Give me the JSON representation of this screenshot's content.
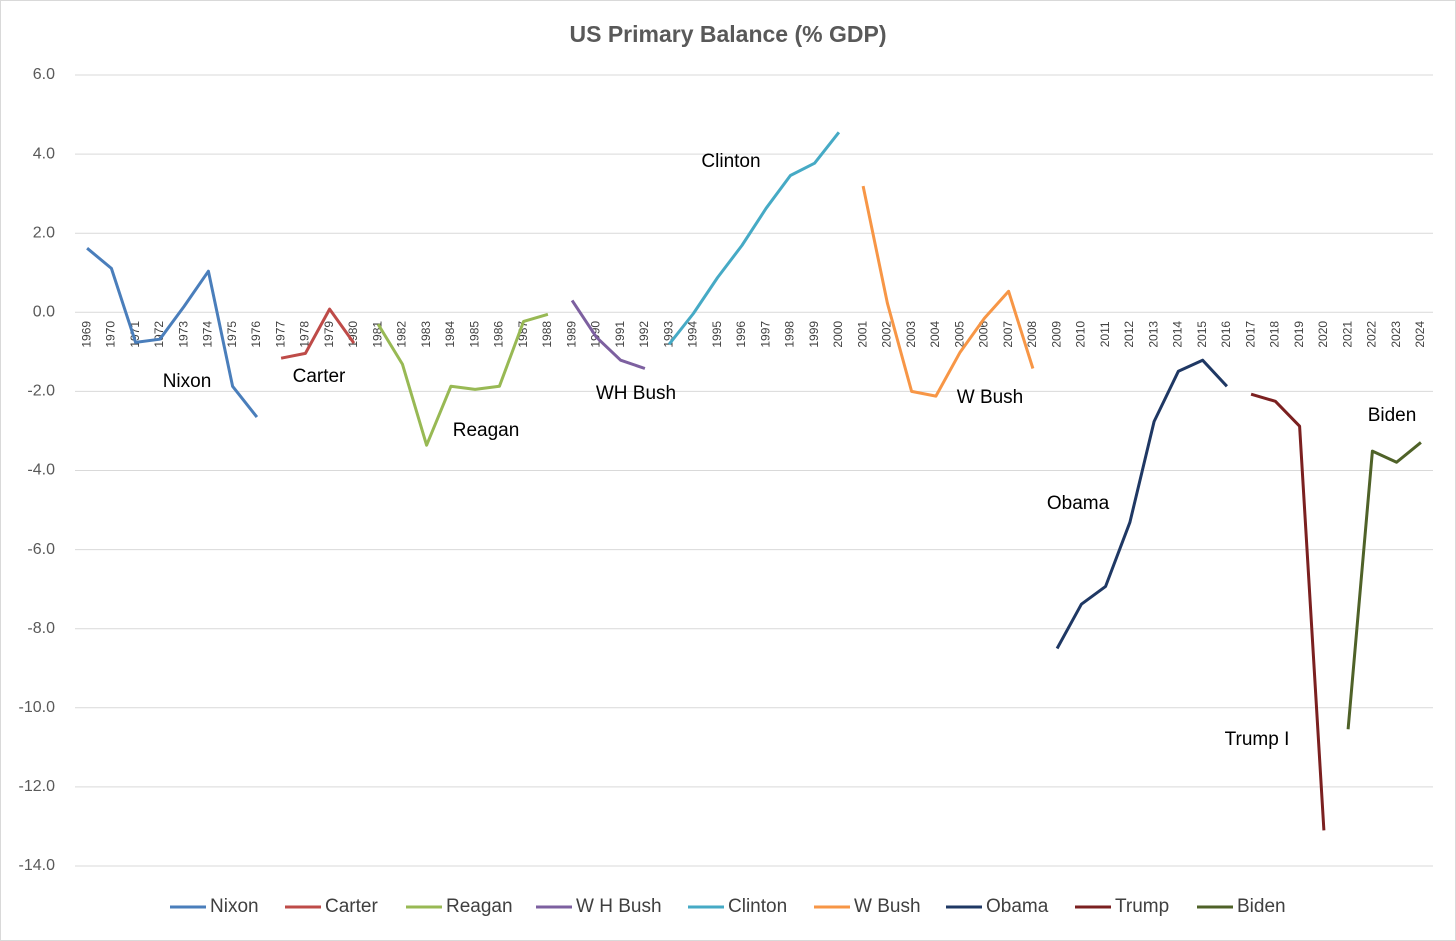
{
  "chart_data": {
    "type": "line",
    "title": "US Primary Balance (% GDP)",
    "categories": [
      "1969",
      "1970",
      "1971",
      "1972",
      "1973",
      "1974",
      "1975",
      "1976",
      "1977",
      "1978",
      "1979",
      "1980",
      "1981",
      "1982",
      "1983",
      "1984",
      "1985",
      "1986",
      "1987",
      "1988",
      "1989",
      "1990",
      "1991",
      "1992",
      "1993",
      "1994",
      "1995",
      "1996",
      "1997",
      "1998",
      "1999",
      "2000",
      "2001",
      "2002",
      "2003",
      "2004",
      "2005",
      "2006",
      "2007",
      "2008",
      "2009",
      "2010",
      "2011",
      "2012",
      "2013",
      "2014",
      "2015",
      "2016",
      "2017",
      "2018",
      "2019",
      "2020",
      "2021",
      "2022",
      "2023",
      "2024"
    ],
    "series": [
      {
        "name": "Nixon",
        "color": "#4a7ebb",
        "values": [
          1.62,
          1.11,
          -0.76,
          -0.68,
          0.15,
          1.04,
          -1.87,
          -2.65,
          null,
          null,
          null,
          null,
          null,
          null,
          null,
          null,
          null,
          null,
          null,
          null,
          null,
          null,
          null,
          null,
          null,
          null,
          null,
          null,
          null,
          null,
          null,
          null,
          null,
          null,
          null,
          null,
          null,
          null,
          null,
          null,
          null,
          null,
          null,
          null,
          null,
          null,
          null,
          null,
          null,
          null,
          null,
          null,
          null,
          null,
          null,
          null
        ]
      },
      {
        "name": "Carter",
        "color": "#be4b48",
        "values": [
          null,
          null,
          null,
          null,
          null,
          null,
          null,
          null,
          -1.16,
          -1.04,
          0.08,
          -0.78,
          null,
          null,
          null,
          null,
          null,
          null,
          null,
          null,
          null,
          null,
          null,
          null,
          null,
          null,
          null,
          null,
          null,
          null,
          null,
          null,
          null,
          null,
          null,
          null,
          null,
          null,
          null,
          null,
          null,
          null,
          null,
          null,
          null,
          null,
          null,
          null,
          null,
          null,
          null,
          null,
          null,
          null,
          null,
          null
        ]
      },
      {
        "name": "Reagan",
        "color": "#98b954",
        "values": [
          null,
          null,
          null,
          null,
          null,
          null,
          null,
          null,
          null,
          null,
          null,
          null,
          -0.3,
          -1.31,
          -3.36,
          -1.87,
          -1.95,
          -1.87,
          -0.23,
          -0.05,
          null,
          null,
          null,
          null,
          null,
          null,
          null,
          null,
          null,
          null,
          null,
          null,
          null,
          null,
          null,
          null,
          null,
          null,
          null,
          null,
          null,
          null,
          null,
          null,
          null,
          null,
          null,
          null,
          null,
          null,
          null,
          null,
          null,
          null,
          null,
          null
        ]
      },
      {
        "name": "W H Bush",
        "color": "#7d60a0",
        "values": [
          null,
          null,
          null,
          null,
          null,
          null,
          null,
          null,
          null,
          null,
          null,
          null,
          null,
          null,
          null,
          null,
          null,
          null,
          null,
          null,
          0.3,
          -0.63,
          -1.21,
          -1.42,
          null,
          null,
          null,
          null,
          null,
          null,
          null,
          null,
          null,
          null,
          null,
          null,
          null,
          null,
          null,
          null,
          null,
          null,
          null,
          null,
          null,
          null,
          null,
          null,
          null,
          null,
          null,
          null,
          null,
          null,
          null,
          null
        ]
      },
      {
        "name": "Clinton",
        "color": "#46aac5",
        "values": [
          null,
          null,
          null,
          null,
          null,
          null,
          null,
          null,
          null,
          null,
          null,
          null,
          null,
          null,
          null,
          null,
          null,
          null,
          null,
          null,
          null,
          null,
          null,
          null,
          -0.81,
          -0.03,
          0.88,
          1.69,
          2.63,
          3.46,
          3.77,
          4.55,
          null,
          null,
          null,
          null,
          null,
          null,
          null,
          null,
          null,
          null,
          null,
          null,
          null,
          null,
          null,
          null,
          null,
          null,
          null,
          null,
          null,
          null,
          null,
          null
        ]
      },
      {
        "name": "W Bush",
        "color": "#f79646",
        "values": [
          null,
          null,
          null,
          null,
          null,
          null,
          null,
          null,
          null,
          null,
          null,
          null,
          null,
          null,
          null,
          null,
          null,
          null,
          null,
          null,
          null,
          null,
          null,
          null,
          null,
          null,
          null,
          null,
          null,
          null,
          null,
          null,
          3.19,
          0.23,
          -2.0,
          -2.12,
          -1.01,
          -0.15,
          0.53,
          -1.42,
          null,
          null,
          null,
          null,
          null,
          null,
          null,
          null,
          null,
          null,
          null,
          null,
          null,
          null,
          null,
          null
        ]
      },
      {
        "name": "Obama",
        "color": "#1f3864",
        "values": [
          null,
          null,
          null,
          null,
          null,
          null,
          null,
          null,
          null,
          null,
          null,
          null,
          null,
          null,
          null,
          null,
          null,
          null,
          null,
          null,
          null,
          null,
          null,
          null,
          null,
          null,
          null,
          null,
          null,
          null,
          null,
          null,
          null,
          null,
          null,
          null,
          null,
          null,
          null,
          null,
          -8.5,
          -7.38,
          -6.93,
          -5.31,
          -2.76,
          -1.49,
          -1.21,
          -1.87,
          null,
          null,
          null,
          null,
          null,
          null,
          null,
          null
        ]
      },
      {
        "name": "Trump",
        "color": "#7b2020",
        "values": [
          null,
          null,
          null,
          null,
          null,
          null,
          null,
          null,
          null,
          null,
          null,
          null,
          null,
          null,
          null,
          null,
          null,
          null,
          null,
          null,
          null,
          null,
          null,
          null,
          null,
          null,
          null,
          null,
          null,
          null,
          null,
          null,
          null,
          null,
          null,
          null,
          null,
          null,
          null,
          null,
          null,
          null,
          null,
          null,
          null,
          null,
          null,
          null,
          -2.07,
          -2.25,
          -2.88,
          -13.1,
          null,
          null,
          null,
          null
        ]
      },
      {
        "name": "Biden",
        "color": "#4f6228",
        "values": [
          null,
          null,
          null,
          null,
          null,
          null,
          null,
          null,
          null,
          null,
          null,
          null,
          null,
          null,
          null,
          null,
          null,
          null,
          null,
          null,
          null,
          null,
          null,
          null,
          null,
          null,
          null,
          null,
          null,
          null,
          null,
          null,
          null,
          null,
          null,
          null,
          null,
          null,
          null,
          null,
          null,
          null,
          null,
          null,
          null,
          null,
          null,
          null,
          null,
          null,
          null,
          null,
          -10.54,
          -3.51,
          -3.79,
          -3.29
        ]
      }
    ],
    "annotations": [
      "Nixon",
      "Carter",
      "Reagan",
      "WH Bush",
      "Clinton",
      "W Bush",
      "Obama",
      "Trump I",
      "Biden"
    ],
    "ylim": [
      -14,
      6
    ],
    "yticks": [
      {
        "value": 6,
        "label": "6.0"
      },
      {
        "value": 4,
        "label": "4.0"
      },
      {
        "value": 2,
        "label": "2.0"
      },
      {
        "value": 0,
        "label": "0.0"
      },
      {
        "value": -2,
        "label": "-2.0"
      },
      {
        "value": -4,
        "label": "-4.0"
      },
      {
        "value": -6,
        "label": "-6.0"
      },
      {
        "value": -8,
        "label": "-8.0"
      },
      {
        "value": -10,
        "label": "-10.0"
      },
      {
        "value": -12,
        "label": "-12.0"
      },
      {
        "value": -14,
        "label": "-14.0"
      }
    ],
    "grid": true,
    "legend": "bottom"
  }
}
